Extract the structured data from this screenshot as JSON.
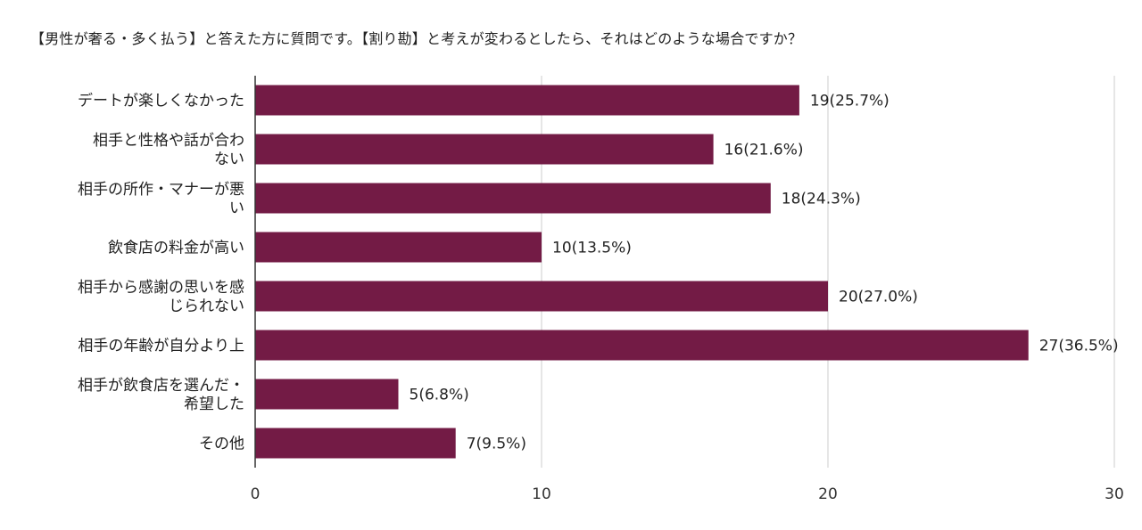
{
  "title": "【男性が奢る・多く払う】と答えた方に質問です。【割り勘】と考えが変わるとしたら、それはどのような場合ですか？",
  "colors": {
    "bar": "#731b45",
    "grid": "#cccccc",
    "axis": "#333333"
  },
  "chart_data": {
    "type": "bar",
    "orientation": "horizontal",
    "title": "【男性が奢る・多く払う】と答えた方に質問です。【割り勘】と考えが変わるとしたら、それはどのような場合ですか？",
    "categories": [
      [
        "デートが楽しくなかった"
      ],
      [
        "相手と性格や話が合わ",
        "ない"
      ],
      [
        "相手の所作・マナーが悪",
        "い"
      ],
      [
        "飲食店の料金が高い"
      ],
      [
        "相手から感謝の思いを感",
        "じられない"
      ],
      [
        "相手の年齢が自分より上"
      ],
      [
        "相手が飲食店を選んだ・",
        "希望した"
      ],
      [
        "その他"
      ]
    ],
    "values": [
      19,
      16,
      18,
      10,
      20,
      27,
      5,
      7
    ],
    "data_labels": [
      "19(25.7%)",
      "16(21.6%)",
      "18(24.3%)",
      "10(13.5%)",
      "20(27.0%)",
      "27(36.5%)",
      "5(6.8%)",
      "7(9.5%)"
    ],
    "xlim": [
      0,
      30
    ],
    "xticks": [
      0,
      10,
      20,
      30
    ],
    "grid": true,
    "legend": "none"
  }
}
